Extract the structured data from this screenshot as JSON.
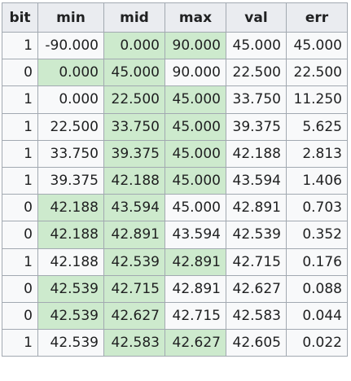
{
  "table": {
    "headers": [
      "bit",
      "min",
      "mid",
      "max",
      "val",
      "err"
    ],
    "rows": [
      {
        "cells": [
          "1",
          "-90.000",
          "0.000",
          "90.000",
          "45.000",
          "45.000"
        ],
        "highlight": [
          false,
          false,
          true,
          true,
          false,
          false
        ]
      },
      {
        "cells": [
          "0",
          "0.000",
          "45.000",
          "90.000",
          "22.500",
          "22.500"
        ],
        "highlight": [
          false,
          true,
          true,
          false,
          false,
          false
        ]
      },
      {
        "cells": [
          "1",
          "0.000",
          "22.500",
          "45.000",
          "33.750",
          "11.250"
        ],
        "highlight": [
          false,
          false,
          true,
          true,
          false,
          false
        ]
      },
      {
        "cells": [
          "1",
          "22.500",
          "33.750",
          "45.000",
          "39.375",
          "5.625"
        ],
        "highlight": [
          false,
          false,
          true,
          true,
          false,
          false
        ]
      },
      {
        "cells": [
          "1",
          "33.750",
          "39.375",
          "45.000",
          "42.188",
          "2.813"
        ],
        "highlight": [
          false,
          false,
          true,
          true,
          false,
          false
        ]
      },
      {
        "cells": [
          "1",
          "39.375",
          "42.188",
          "45.000",
          "43.594",
          "1.406"
        ],
        "highlight": [
          false,
          false,
          true,
          true,
          false,
          false
        ]
      },
      {
        "cells": [
          "0",
          "42.188",
          "43.594",
          "45.000",
          "42.891",
          "0.703"
        ],
        "highlight": [
          false,
          true,
          true,
          false,
          false,
          false
        ]
      },
      {
        "cells": [
          "0",
          "42.188",
          "42.891",
          "43.594",
          "42.539",
          "0.352"
        ],
        "highlight": [
          false,
          true,
          true,
          false,
          false,
          false
        ]
      },
      {
        "cells": [
          "1",
          "42.188",
          "42.539",
          "42.891",
          "42.715",
          "0.176"
        ],
        "highlight": [
          false,
          false,
          true,
          true,
          false,
          false
        ]
      },
      {
        "cells": [
          "0",
          "42.539",
          "42.715",
          "42.891",
          "42.627",
          "0.088"
        ],
        "highlight": [
          false,
          true,
          true,
          false,
          false,
          false
        ]
      },
      {
        "cells": [
          "0",
          "42.539",
          "42.627",
          "42.715",
          "42.583",
          "0.044"
        ],
        "highlight": [
          false,
          true,
          true,
          false,
          false,
          false
        ]
      },
      {
        "cells": [
          "1",
          "42.539",
          "42.583",
          "42.627",
          "42.605",
          "0.022"
        ],
        "highlight": [
          false,
          false,
          true,
          true,
          false,
          false
        ]
      }
    ]
  },
  "colors": {
    "highlight": "#cdeacd",
    "header_bg": "#eaecf0",
    "cell_bg": "#f8f9fa",
    "border": "#a2a9b1"
  }
}
